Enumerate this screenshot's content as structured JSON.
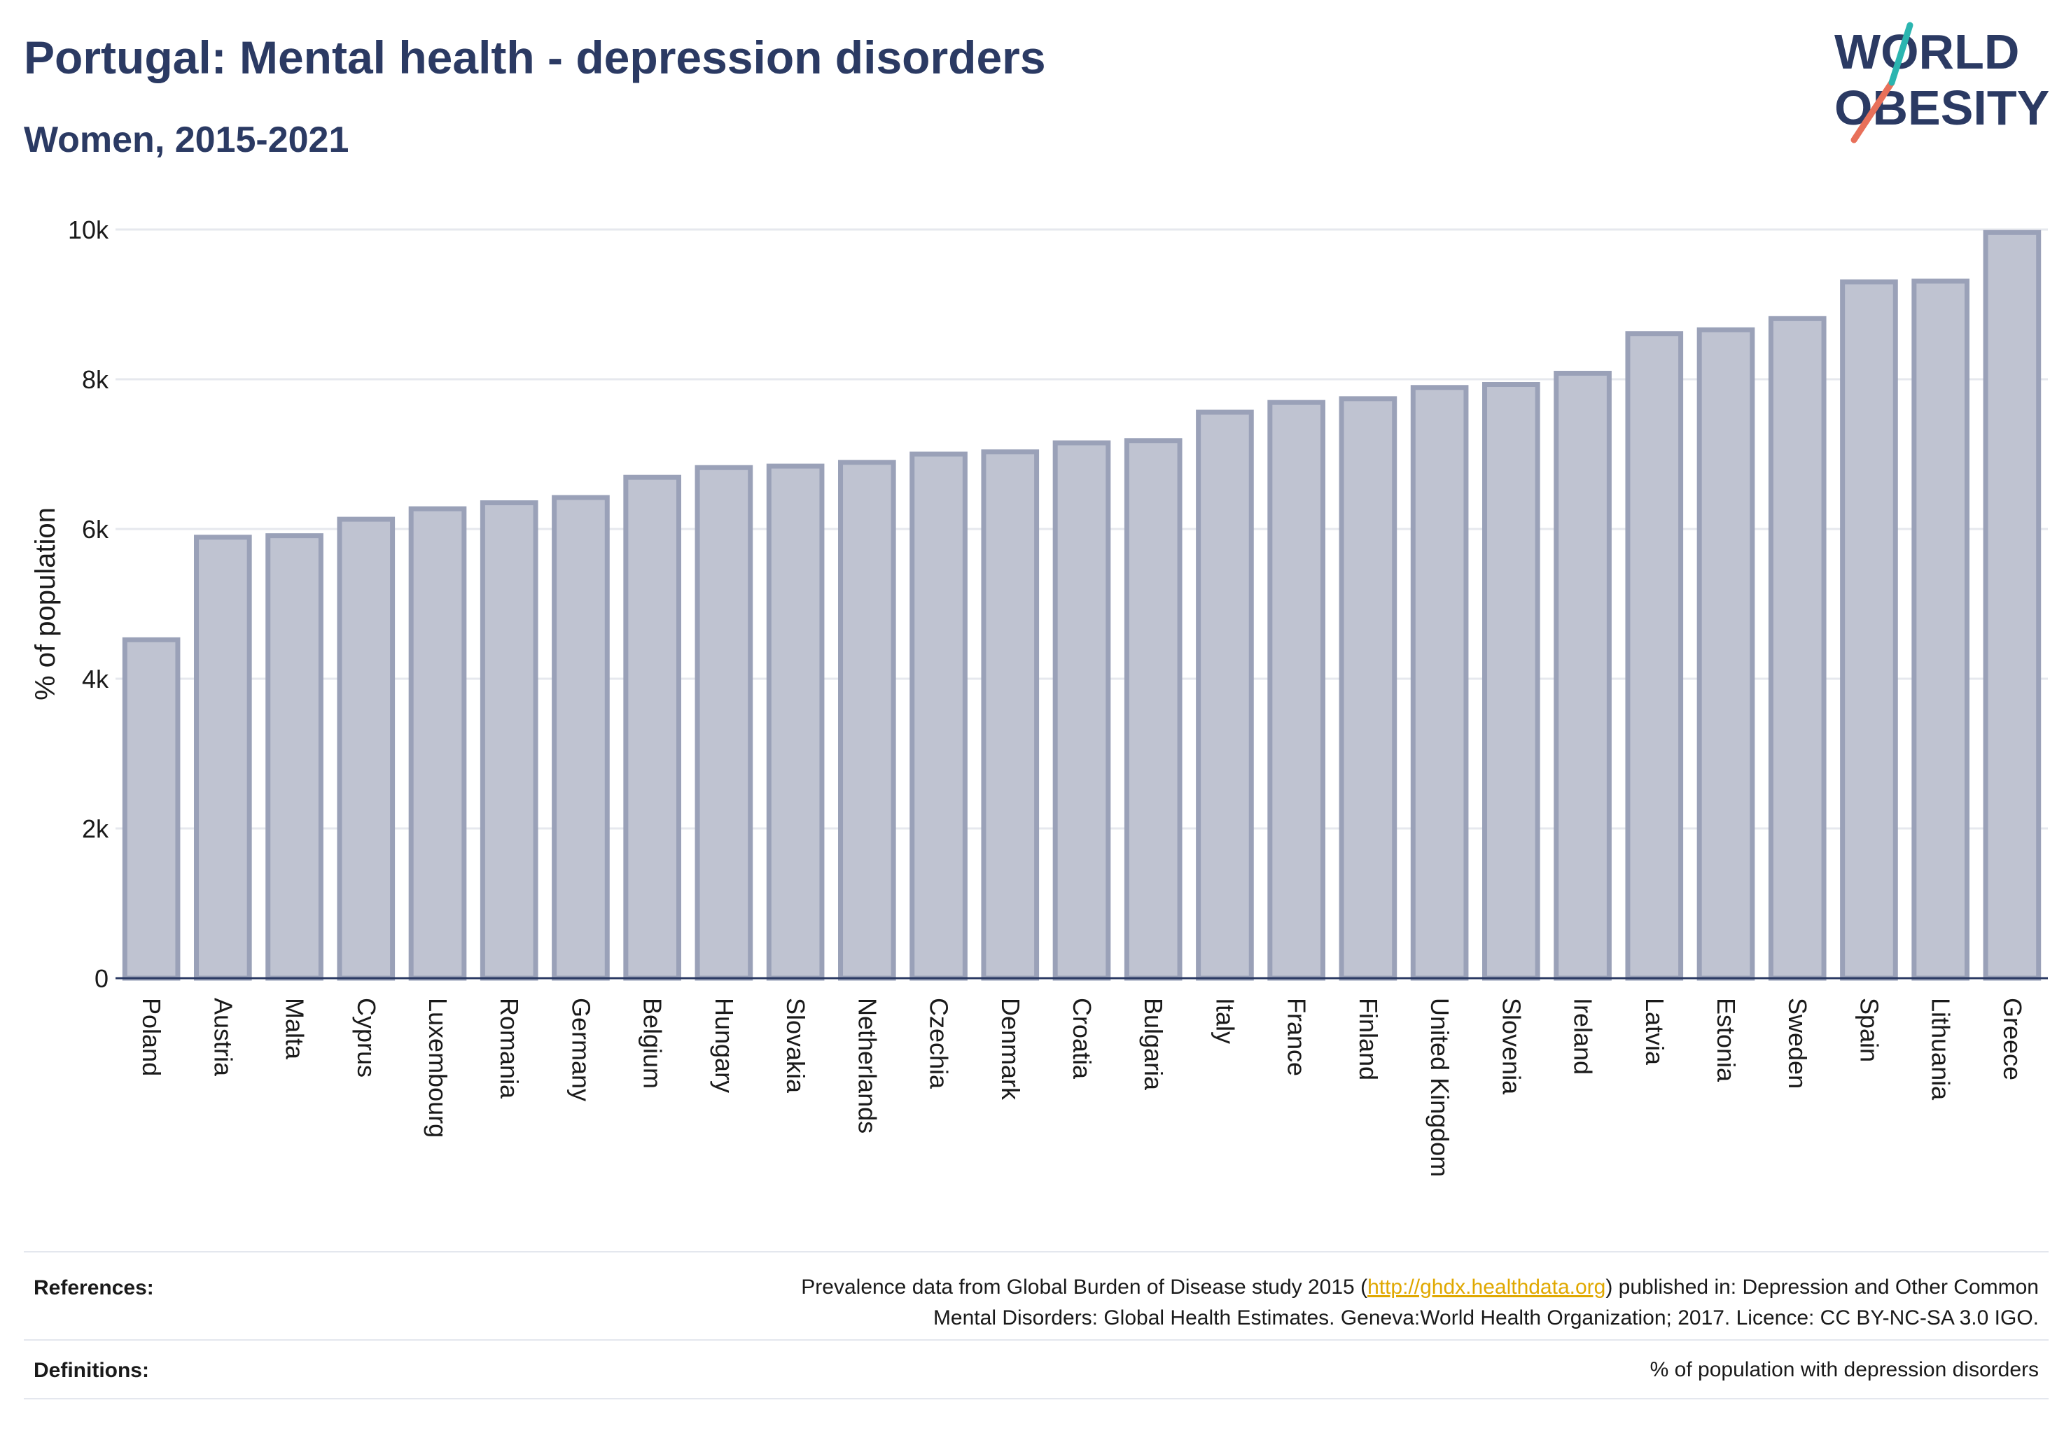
{
  "header": {
    "title": "Portugal: Mental health - depression disorders",
    "subtitle": "Women, 2015-2021"
  },
  "logo": {
    "line1": "WORLD",
    "line2": "OBESITY",
    "brand_color": "#2b3a63",
    "accent_teal": "#2bb5b0",
    "accent_coral": "#e8705a"
  },
  "chart_data": {
    "type": "bar",
    "ylabel": "% of population",
    "xlabel": "",
    "ylim": [
      0,
      10000
    ],
    "yticks": [
      0,
      2000,
      4000,
      6000,
      8000,
      10000
    ],
    "ytick_labels": [
      "0",
      "2k",
      "4k",
      "6k",
      "8k",
      "10k"
    ],
    "grid": true,
    "bar_color": "#bfc3d1",
    "bar_edge_color": "#9aa1b8",
    "categories": [
      "Poland",
      "Austria",
      "Malta",
      "Cyprus",
      "Luxembourg",
      "Romania",
      "Germany",
      "Belgium",
      "Hungary",
      "Slovakia",
      "Netherlands",
      "Czechia",
      "Denmark",
      "Croatia",
      "Bulgaria",
      "Italy",
      "France",
      "Finland",
      "United Kingdom",
      "Slovenia",
      "Ireland",
      "Latvia",
      "Estonia",
      "Sweden",
      "Spain",
      "Lithuania",
      "Greece"
    ],
    "values": [
      4520,
      5890,
      5910,
      6130,
      6270,
      6350,
      6420,
      6690,
      6820,
      6840,
      6890,
      7000,
      7030,
      7150,
      7180,
      7560,
      7690,
      7740,
      7890,
      7930,
      8080,
      8610,
      8660,
      8810,
      9300,
      9310,
      9960
    ]
  },
  "footer": {
    "references_label": "References:",
    "references_text_1": "Prevalence data from Global Burden of Disease study 2015 (",
    "references_link": "http://ghdx.healthdata.org",
    "references_text_2": ") published in: Depression and Other Common",
    "references_text_3": "Mental Disorders: Global Health Estimates. Geneva:World Health Organization; 2017. Licence: CC BY-NC-SA 3.0 IGO.",
    "definitions_label": "Definitions:",
    "definitions_text": "% of population with depression disorders"
  }
}
